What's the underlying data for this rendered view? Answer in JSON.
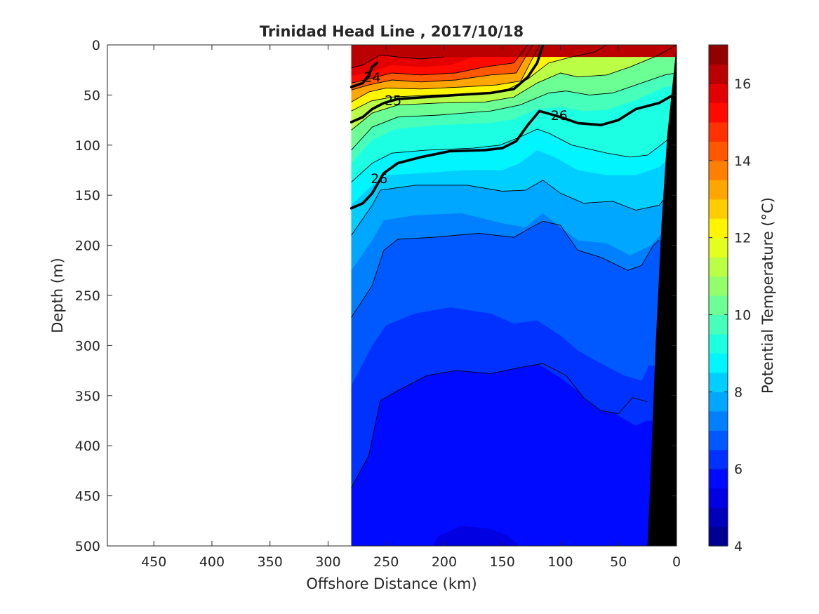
{
  "chart_data": {
    "type": "heatmap",
    "subtype": "filled-contour-section",
    "title": "Trinidad Head Line , 2017/10/18",
    "xlabel": "Offshore Distance (km)",
    "ylabel": "Depth (m)",
    "xlim": [
      490,
      0
    ],
    "ylim": [
      0,
      500
    ],
    "x_reversed": true,
    "y_reversed": true,
    "x_ticks": [
      450,
      400,
      350,
      300,
      250,
      200,
      150,
      100,
      50,
      0
    ],
    "y_ticks": [
      0,
      50,
      100,
      150,
      200,
      250,
      300,
      350,
      400,
      450,
      500
    ],
    "data_extent_km": [
      280,
      0
    ],
    "colorbar": {
      "label": "Potential Temperature (°C)",
      "range": [
        4,
        17
      ],
      "ticks": [
        4,
        6,
        8,
        10,
        12,
        14,
        16
      ],
      "colormap": "jet",
      "levels": 26
    },
    "isotherms": [
      {
        "temp": 16,
        "points": [
          [
            280,
            23
          ],
          [
            270,
            20
          ],
          [
            255,
            10
          ],
          [
            240,
            12
          ],
          [
            220,
            14
          ],
          [
            200,
            12
          ]
        ]
      },
      {
        "temp": 15.5,
        "points": [
          [
            280,
            31
          ],
          [
            265,
            28
          ],
          [
            245,
            20
          ],
          [
            220,
            22
          ],
          [
            195,
            20
          ],
          [
            175,
            12
          ],
          [
            160,
            5
          ],
          [
            140,
            0
          ]
        ]
      },
      {
        "temp": 15,
        "points": [
          [
            280,
            38
          ],
          [
            265,
            34
          ],
          [
            245,
            28
          ],
          [
            220,
            30
          ],
          [
            190,
            28
          ],
          [
            165,
            22
          ],
          [
            140,
            18
          ],
          [
            128,
            0
          ]
        ]
      },
      {
        "temp": 14,
        "points": [
          [
            280,
            45
          ],
          [
            265,
            40
          ],
          [
            245,
            35
          ],
          [
            220,
            37
          ],
          [
            190,
            35
          ],
          [
            160,
            30
          ],
          [
            138,
            28
          ],
          [
            124,
            0
          ]
        ]
      },
      {
        "temp": 13,
        "points": [
          [
            280,
            57
          ],
          [
            265,
            47
          ],
          [
            250,
            43
          ],
          [
            220,
            44
          ],
          [
            185,
            42
          ],
          [
            155,
            40
          ],
          [
            134,
            36
          ],
          [
            118,
            0
          ]
        ]
      },
      {
        "temp": 12,
        "points": [
          [
            280,
            66
          ],
          [
            263,
            56
          ],
          [
            245,
            52
          ],
          [
            210,
            50
          ],
          [
            175,
            49
          ],
          [
            148,
            46
          ],
          [
            128,
            34
          ],
          [
            110,
            18
          ],
          [
            90,
            12
          ],
          [
            70,
            7
          ],
          [
            60,
            0
          ]
        ]
      },
      {
        "temp": 11,
        "points": [
          [
            280,
            85
          ],
          [
            262,
            68
          ],
          [
            240,
            60
          ],
          [
            205,
            58
          ],
          [
            165,
            57
          ],
          [
            140,
            52
          ],
          [
            120,
            38
          ],
          [
            100,
            28
          ],
          [
            85,
            32
          ],
          [
            60,
            30
          ],
          [
            40,
            22
          ],
          [
            15,
            10
          ],
          [
            0,
            0
          ]
        ]
      },
      {
        "temp": 10,
        "points": [
          [
            280,
            105
          ],
          [
            262,
            82
          ],
          [
            240,
            72
          ],
          [
            205,
            70
          ],
          [
            160,
            66
          ],
          [
            135,
            60
          ],
          [
            110,
            48
          ],
          [
            95,
            46
          ],
          [
            75,
            50
          ],
          [
            55,
            48
          ],
          [
            35,
            40
          ],
          [
            10,
            30
          ],
          [
            0,
            28
          ]
        ]
      },
      {
        "temp": 9.5,
        "points": [
          [
            280,
            118
          ],
          [
            262,
            95
          ],
          [
            242,
            84
          ],
          [
            205,
            80
          ],
          [
            160,
            78
          ],
          [
            140,
            74
          ],
          [
            120,
            64
          ],
          [
            100,
            62
          ],
          [
            80,
            66
          ],
          [
            60,
            65
          ],
          [
            35,
            55
          ],
          [
            10,
            42
          ],
          [
            0,
            40
          ]
        ]
      },
      {
        "temp": 9,
        "points": [
          [
            280,
            137
          ],
          [
            262,
            118
          ],
          [
            245,
            108
          ],
          [
            215,
            105
          ],
          [
            175,
            103
          ],
          [
            152,
            100
          ],
          [
            135,
            92
          ],
          [
            120,
            84
          ],
          [
            110,
            88
          ],
          [
            90,
            100
          ],
          [
            60,
            108
          ],
          [
            40,
            112
          ],
          [
            25,
            110
          ],
          [
            8,
            95
          ],
          [
            0,
            85
          ]
        ]
      },
      {
        "temp": 8.5,
        "points": [
          [
            280,
            160
          ],
          [
            262,
            140
          ],
          [
            248,
            130
          ],
          [
            220,
            128
          ],
          [
            180,
            125
          ],
          [
            150,
            125
          ],
          [
            135,
            118
          ],
          [
            120,
            105
          ],
          [
            105,
            112
          ],
          [
            85,
            125
          ],
          [
            60,
            130
          ],
          [
            35,
            130
          ],
          [
            15,
            122
          ],
          [
            5,
            112
          ]
        ]
      },
      {
        "temp": 8,
        "points": [
          [
            280,
            190
          ],
          [
            262,
            160
          ],
          [
            255,
            145
          ],
          [
            225,
            140
          ],
          [
            180,
            140
          ],
          [
            150,
            146
          ],
          [
            130,
            145
          ],
          [
            115,
            135
          ],
          [
            100,
            148
          ],
          [
            80,
            158
          ],
          [
            55,
            156
          ],
          [
            35,
            165
          ],
          [
            15,
            160
          ],
          [
            8,
            150
          ]
        ]
      },
      {
        "temp": 7.5,
        "points": [
          [
            280,
            225
          ],
          [
            262,
            195
          ],
          [
            252,
            175
          ],
          [
            225,
            170
          ],
          [
            185,
            168
          ],
          [
            150,
            178
          ],
          [
            130,
            182
          ],
          [
            115,
            168
          ],
          [
            100,
            182
          ],
          [
            85,
            195
          ],
          [
            60,
            198
          ],
          [
            40,
            210
          ],
          [
            22,
            200
          ],
          [
            14,
            190
          ]
        ]
      },
      {
        "temp": 7,
        "points": [
          [
            280,
            272
          ],
          [
            262,
            240
          ],
          [
            252,
            205
          ],
          [
            240,
            194
          ],
          [
            210,
            192
          ],
          [
            170,
            188
          ],
          [
            140,
            192
          ],
          [
            125,
            182
          ],
          [
            115,
            176
          ],
          [
            100,
            180
          ],
          [
            85,
            205
          ],
          [
            65,
            212
          ],
          [
            42,
            225
          ],
          [
            30,
            220
          ],
          [
            20,
            200
          ],
          [
            15,
            195
          ]
        ]
      },
      {
        "temp": 6.75,
        "points": [
          [
            280,
            300
          ],
          [
            262,
            270
          ],
          [
            250,
            240
          ],
          [
            230,
            232
          ],
          [
            200,
            230
          ],
          [
            165,
            228
          ],
          [
            140,
            235
          ],
          [
            120,
            230
          ],
          [
            100,
            240
          ],
          [
            85,
            255
          ],
          [
            65,
            262
          ],
          [
            45,
            275
          ],
          [
            30,
            270
          ],
          [
            22,
            260
          ]
        ]
      },
      {
        "temp": 6.5,
        "points": [
          [
            280,
            340
          ],
          [
            262,
            300
          ],
          [
            250,
            280
          ],
          [
            225,
            268
          ],
          [
            195,
            262
          ],
          [
            160,
            268
          ],
          [
            140,
            278
          ],
          [
            120,
            275
          ],
          [
            100,
            290
          ],
          [
            85,
            305
          ],
          [
            65,
            318
          ],
          [
            45,
            330
          ],
          [
            30,
            335
          ],
          [
            24,
            320
          ]
        ]
      },
      {
        "temp": 6.25,
        "points": [
          [
            280,
            400
          ],
          [
            265,
            360
          ],
          [
            250,
            340
          ],
          [
            225,
            325
          ],
          [
            195,
            318
          ],
          [
            160,
            322
          ],
          [
            140,
            320
          ],
          [
            120,
            318
          ],
          [
            100,
            332
          ],
          [
            85,
            345
          ],
          [
            70,
            352
          ],
          [
            50,
            370
          ],
          [
            35,
            380
          ],
          [
            26,
            375
          ]
        ]
      },
      {
        "temp": 6,
        "points": [
          [
            280,
            442
          ],
          [
            265,
            410
          ],
          [
            255,
            355
          ],
          [
            240,
            345
          ],
          [
            215,
            330
          ],
          [
            190,
            325
          ],
          [
            160,
            328
          ],
          [
            135,
            322
          ],
          [
            115,
            318
          ],
          [
            95,
            330
          ],
          [
            80,
            352
          ],
          [
            65,
            365
          ],
          [
            50,
            368
          ],
          [
            38,
            352
          ],
          [
            25,
            356
          ]
        ]
      },
      {
        "temp": 5.75,
        "points": [
          [
            270,
            500
          ],
          [
            262,
            455
          ],
          [
            250,
            420
          ],
          [
            225,
            400
          ],
          [
            195,
            385
          ],
          [
            165,
            388
          ],
          [
            140,
            405
          ],
          [
            115,
            420
          ],
          [
            95,
            440
          ],
          [
            80,
            470
          ],
          [
            60,
            470
          ],
          [
            40,
            480
          ],
          [
            27,
            478
          ]
        ]
      },
      {
        "temp": 5.5,
        "points": [
          [
            210,
            500
          ],
          [
            205,
            490
          ],
          [
            185,
            480
          ],
          [
            160,
            483
          ],
          [
            145,
            490
          ],
          [
            135,
            500
          ]
        ]
      }
    ],
    "density_contours": [
      {
        "label": "24",
        "points": [
          [
            280,
            42
          ],
          [
            270,
            38
          ],
          [
            265,
            30
          ],
          [
            262,
            22
          ],
          [
            258,
            18
          ]
        ]
      },
      {
        "label": "25",
        "points": [
          [
            280,
            77
          ],
          [
            270,
            72
          ],
          [
            262,
            64
          ],
          [
            252,
            58
          ],
          [
            240,
            54
          ],
          [
            215,
            52
          ],
          [
            190,
            50
          ],
          [
            160,
            48
          ],
          [
            140,
            44
          ],
          [
            128,
            32
          ],
          [
            120,
            18
          ],
          [
            115,
            0
          ]
        ]
      },
      {
        "label": "26",
        "points": [
          [
            280,
            163
          ],
          [
            270,
            158
          ],
          [
            262,
            148
          ],
          [
            252,
            128
          ],
          [
            240,
            118
          ],
          [
            220,
            112
          ],
          [
            195,
            106
          ],
          [
            165,
            105
          ],
          [
            150,
            103
          ],
          [
            138,
            96
          ],
          [
            128,
            80
          ],
          [
            118,
            66
          ],
          [
            100,
            72
          ],
          [
            85,
            78
          ],
          [
            65,
            80
          ],
          [
            50,
            75
          ],
          [
            35,
            64
          ],
          [
            15,
            58
          ],
          [
            0,
            48
          ]
        ]
      }
    ],
    "bottom_profile": [
      [
        25,
        500
      ],
      [
        22,
        420
      ],
      [
        18,
        300
      ],
      [
        13,
        180
      ],
      [
        8,
        90
      ],
      [
        3,
        35
      ],
      [
        0,
        0
      ]
    ],
    "contour_labels": [
      {
        "text": "24",
        "x": 262,
        "y": 32
      },
      {
        "text": "25",
        "x": 244,
        "y": 55
      },
      {
        "text": "26",
        "x": 101,
        "y": 70
      },
      {
        "text": "26",
        "x": 256,
        "y": 133
      }
    ]
  }
}
